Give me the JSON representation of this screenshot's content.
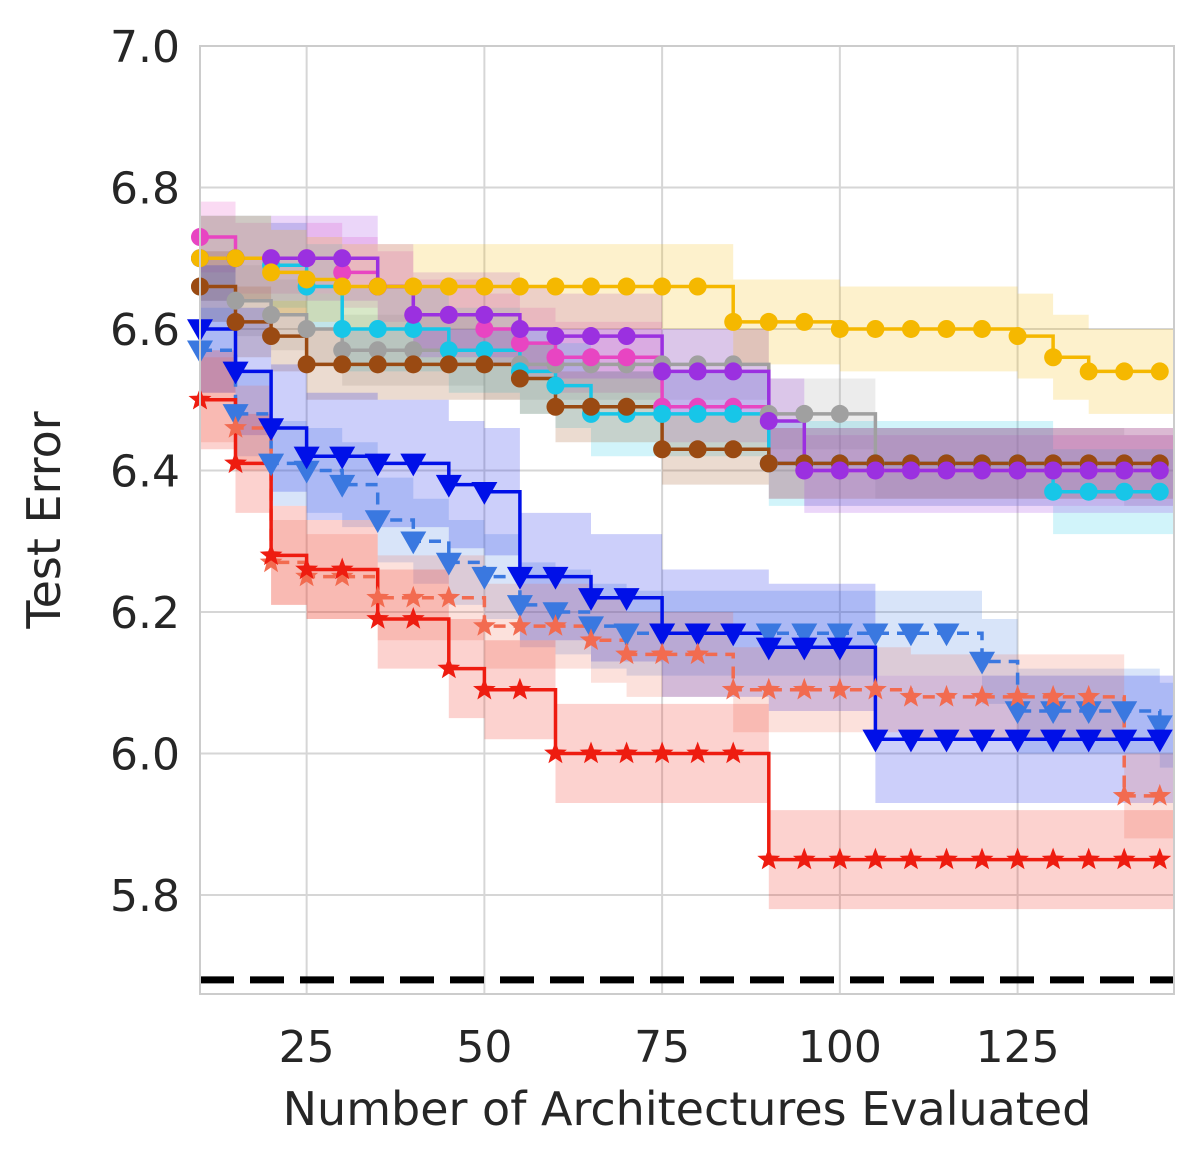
{
  "chart_data": {
    "type": "line",
    "title": "",
    "xlabel": "Number of Architectures Evaluated",
    "ylabel": "Test Error",
    "xlim": [
      10,
      147
    ],
    "ylim": [
      5.66,
      7.0
    ],
    "xticks": [
      25,
      50,
      75,
      100,
      125
    ],
    "xtick_labels": [
      "25",
      "50",
      "75",
      "100",
      "125"
    ],
    "yticks": [
      5.8,
      6.0,
      6.2,
      6.4,
      6.6,
      6.8,
      7.0
    ],
    "ytick_labels": [
      "5.8",
      "6.0",
      "6.2",
      "6.4",
      "6.6",
      "6.8",
      "7.0"
    ],
    "grid": true,
    "x": [
      10,
      15,
      20,
      25,
      30,
      35,
      40,
      45,
      50,
      55,
      60,
      65,
      70,
      75,
      80,
      85,
      90,
      95,
      100,
      105,
      110,
      115,
      120,
      125,
      130,
      135,
      140,
      145
    ],
    "reference_line": {
      "y": 5.68,
      "style": "dashed",
      "color": "#000000"
    },
    "series": [
      {
        "name": "gray",
        "color": "#a0a0a0",
        "marker": "circle",
        "dashed": false,
        "band": 0.05,
        "values": [
          6.66,
          6.64,
          6.62,
          6.6,
          6.57,
          6.57,
          6.57,
          6.57,
          6.55,
          6.55,
          6.55,
          6.55,
          6.55,
          6.55,
          6.55,
          6.55,
          6.48,
          6.48,
          6.48,
          6.41,
          6.41,
          6.41,
          6.41,
          6.41,
          6.41,
          6.41,
          6.4,
          6.4
        ]
      },
      {
        "name": "pink",
        "color": "#e845c2",
        "marker": "circle",
        "dashed": false,
        "band": 0.05,
        "values": [
          6.73,
          6.7,
          6.7,
          6.7,
          6.68,
          6.66,
          6.62,
          6.62,
          6.6,
          6.58,
          6.56,
          6.56,
          6.56,
          6.49,
          6.49,
          6.49,
          6.41,
          6.4,
          6.4,
          6.4,
          6.4,
          6.4,
          6.4,
          6.4,
          6.4,
          6.4,
          6.4,
          6.4
        ]
      },
      {
        "name": "cyan",
        "color": "#17c6e8",
        "marker": "circle",
        "dashed": false,
        "band": 0.06,
        "values": [
          6.7,
          6.7,
          6.69,
          6.66,
          6.6,
          6.6,
          6.6,
          6.57,
          6.57,
          6.54,
          6.52,
          6.48,
          6.48,
          6.48,
          6.48,
          6.48,
          6.41,
          6.41,
          6.41,
          6.41,
          6.41,
          6.41,
          6.41,
          6.41,
          6.37,
          6.37,
          6.37,
          6.37
        ]
      },
      {
        "name": "brown",
        "color": "#9a4a12",
        "marker": "circle",
        "dashed": false,
        "band": 0.05,
        "values": [
          6.66,
          6.61,
          6.59,
          6.55,
          6.55,
          6.55,
          6.55,
          6.55,
          6.55,
          6.53,
          6.49,
          6.49,
          6.49,
          6.43,
          6.43,
          6.43,
          6.41,
          6.41,
          6.41,
          6.41,
          6.41,
          6.41,
          6.41,
          6.41,
          6.41,
          6.41,
          6.41,
          6.41
        ]
      },
      {
        "name": "purple",
        "color": "#9b30e0",
        "marker": "circle",
        "dashed": false,
        "band": 0.06,
        "values": [
          6.7,
          6.7,
          6.7,
          6.7,
          6.7,
          6.66,
          6.62,
          6.62,
          6.62,
          6.6,
          6.59,
          6.59,
          6.59,
          6.54,
          6.54,
          6.54,
          6.47,
          6.4,
          6.4,
          6.4,
          6.4,
          6.4,
          6.4,
          6.4,
          6.4,
          6.4,
          6.4,
          6.4
        ]
      },
      {
        "name": "gold",
        "color": "#f5b800",
        "marker": "circle",
        "dashed": false,
        "band": 0.06,
        "values": [
          6.7,
          6.7,
          6.68,
          6.67,
          6.66,
          6.66,
          6.66,
          6.66,
          6.66,
          6.66,
          6.66,
          6.66,
          6.66,
          6.66,
          6.66,
          6.61,
          6.61,
          6.61,
          6.6,
          6.6,
          6.6,
          6.6,
          6.6,
          6.59,
          6.56,
          6.54,
          6.54,
          6.54
        ]
      },
      {
        "name": "blue-dashed",
        "color": "#3a78e0",
        "marker": "triangle-down",
        "dashed": true,
        "band": 0.06,
        "values": [
          6.57,
          6.48,
          6.41,
          6.4,
          6.38,
          6.33,
          6.3,
          6.27,
          6.25,
          6.21,
          6.2,
          6.18,
          6.17,
          6.17,
          6.17,
          6.17,
          6.17,
          6.17,
          6.17,
          6.17,
          6.17,
          6.17,
          6.13,
          6.06,
          6.06,
          6.06,
          6.06,
          6.04
        ]
      },
      {
        "name": "blue",
        "color": "#0010e8",
        "marker": "triangle-down",
        "dashed": false,
        "band": 0.09,
        "values": [
          6.6,
          6.54,
          6.46,
          6.42,
          6.42,
          6.41,
          6.41,
          6.38,
          6.37,
          6.25,
          6.25,
          6.22,
          6.22,
          6.17,
          6.17,
          6.17,
          6.15,
          6.15,
          6.15,
          6.02,
          6.02,
          6.02,
          6.02,
          6.02,
          6.02,
          6.02,
          6.02,
          6.02
        ]
      },
      {
        "name": "salmon-dashed",
        "color": "#f26b50",
        "marker": "star",
        "dashed": true,
        "band": 0.06,
        "values": [
          6.5,
          6.46,
          6.27,
          6.25,
          6.25,
          6.22,
          6.22,
          6.22,
          6.18,
          6.18,
          6.18,
          6.16,
          6.14,
          6.14,
          6.14,
          6.09,
          6.09,
          6.09,
          6.09,
          6.09,
          6.08,
          6.08,
          6.08,
          6.08,
          6.08,
          6.08,
          5.94,
          5.94
        ]
      },
      {
        "name": "red",
        "color": "#ee1c10",
        "marker": "star",
        "dashed": false,
        "band": 0.07,
        "values": [
          6.5,
          6.41,
          6.28,
          6.26,
          6.26,
          6.19,
          6.19,
          6.12,
          6.09,
          6.09,
          6.0,
          6.0,
          6.0,
          6.0,
          6.0,
          6.0,
          5.85,
          5.85,
          5.85,
          5.85,
          5.85,
          5.85,
          5.85,
          5.85,
          5.85,
          5.85,
          5.85,
          5.85
        ]
      }
    ]
  }
}
